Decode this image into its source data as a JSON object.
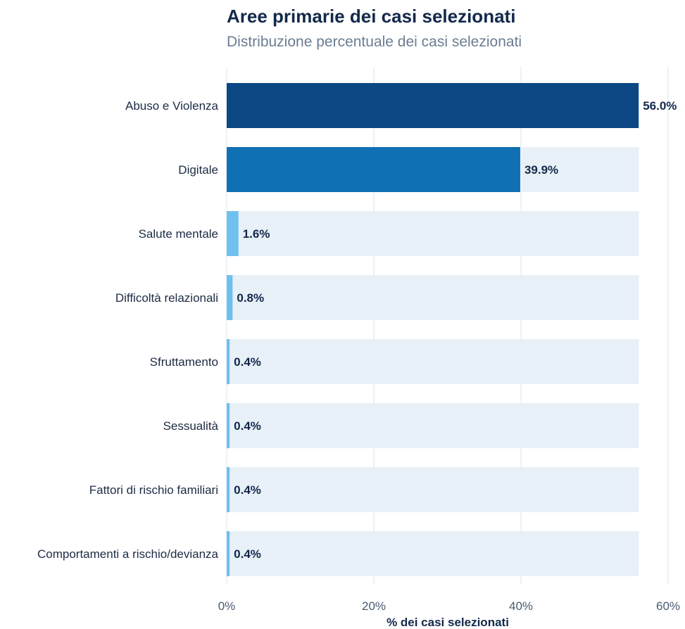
{
  "chart_data": {
    "type": "bar",
    "orientation": "horizontal",
    "title": "Aree primarie dei casi selezionati",
    "subtitle": "Distribuzione percentuale dei casi selezionati",
    "xlabel": "% dei casi selezionati",
    "ylabel": "",
    "xlim": [
      0,
      60
    ],
    "xticks": [
      0,
      20,
      40,
      60
    ],
    "xtick_labels": [
      "0%",
      "20%",
      "40%",
      "60%"
    ],
    "grid": true,
    "background_track_value": 56.0,
    "categories": [
      "Abuso e Violenza",
      "Digitale",
      "Salute mentale",
      "Difficoltà relazionali",
      "Sfruttamento",
      "Sessualità",
      "Fattori di rischio familiari",
      "Comportamenti a rischio/devianza"
    ],
    "values": [
      56.0,
      39.9,
      1.6,
      0.8,
      0.4,
      0.4,
      0.4,
      0.4
    ],
    "value_labels": [
      "56.0%",
      "39.9%",
      "1.6%",
      "0.8%",
      "0.4%",
      "0.4%",
      "0.4%",
      "0.4%"
    ],
    "bar_colors": [
      "#0b4884",
      "#1170b3",
      "#6ec0ee",
      "#6ec0ee",
      "#6ec0ee",
      "#6ec0ee",
      "#6ec0ee",
      "#6ec0ee"
    ],
    "track_color": "#e8f0f8",
    "grid_color": "#e6edf4"
  }
}
